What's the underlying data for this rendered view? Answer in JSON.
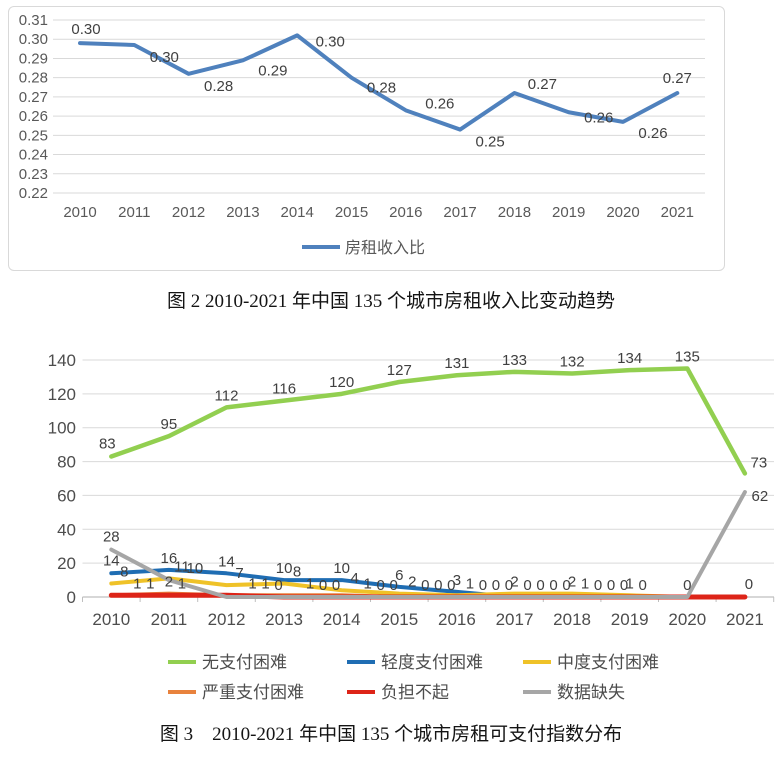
{
  "page": {
    "background": "#ffffff"
  },
  "figure2": {
    "caption": "图 2 2010-2021 年中国 135 个城市房租收入比变动趋势"
  },
  "figure3": {
    "caption": "图 3　2010-2021 年中国 135 个城市房租可支付指数分布"
  },
  "chart_data": [
    {
      "id": "rent-income-ratio-trend",
      "type": "line",
      "categories": [
        "2010",
        "2011",
        "2012",
        "2013",
        "2014",
        "2015",
        "2016",
        "2017",
        "2018",
        "2019",
        "2020",
        "2021"
      ],
      "series": [
        {
          "key": "rent-income-ratio",
          "name": "房租收入比",
          "color": "#4f81bd",
          "values": [
            0.298,
            0.297,
            0.282,
            0.289,
            0.302,
            0.28,
            0.263,
            0.253,
            0.272,
            0.262,
            0.257,
            0.272
          ],
          "data_labels": [
            "0.30",
            "0.30",
            "0.28",
            "0.29",
            "0.30",
            "0.28",
            "0.26",
            "0.25",
            "0.27",
            "0.26",
            "0.26",
            "0.27"
          ]
        }
      ],
      "ylim": [
        0.22,
        0.31
      ],
      "ytick_step": 0.01,
      "ytick_labels": [
        "0.22",
        "0.23",
        "0.24",
        "0.25",
        "0.26",
        "0.27",
        "0.28",
        "0.29",
        "0.30",
        "0.31"
      ],
      "grid": true,
      "grid_color": "#d9d9d9",
      "legend_position": "bottom"
    },
    {
      "id": "affordability-index-distribution",
      "type": "line",
      "categories": [
        "2010",
        "2011",
        "2012",
        "2013",
        "2014",
        "2015",
        "2016",
        "2017",
        "2018",
        "2019",
        "2020",
        "2021"
      ],
      "series": [
        {
          "key": "no-payment-difficulty",
          "name": "无支付困难",
          "color": "#92cf50",
          "values": [
            83,
            95,
            112,
            116,
            120,
            127,
            131,
            133,
            132,
            134,
            135,
            73
          ]
        },
        {
          "key": "mild-payment-difficulty",
          "name": "轻度支付困难",
          "color": "#1f6db3",
          "values": [
            14,
            16,
            14,
            10,
            10,
            6,
            3,
            0,
            1,
            0,
            0,
            0
          ]
        },
        {
          "key": "moderate-payment-difficulty",
          "name": "中度支付困难",
          "color": "#efc228",
          "values": [
            8,
            11,
            7,
            8,
            4,
            2,
            1,
            2,
            2,
            1,
            0,
            0
          ]
        },
        {
          "key": "severe-payment-difficulty",
          "name": "严重支付困难",
          "color": "#e8823d",
          "values": [
            1,
            2,
            1,
            1,
            1,
            0,
            0,
            0,
            0,
            0,
            0,
            0
          ]
        },
        {
          "key": "unaffordable",
          "name": "负担不起",
          "color": "#dd2418",
          "values": [
            1,
            1,
            1,
            0,
            0,
            0,
            0,
            0,
            0,
            0,
            0,
            0
          ]
        },
        {
          "key": "missing-data",
          "name": "数据缺失",
          "color": "#a6a6a6",
          "values": [
            28,
            10,
            0,
            0,
            0,
            0,
            0,
            0,
            0,
            0,
            0,
            62
          ]
        }
      ],
      "ylim": [
        0,
        140
      ],
      "ytick_step": 20,
      "ytick_labels": [
        "0",
        "20",
        "40",
        "60",
        "80",
        "100",
        "120",
        "140"
      ],
      "grid": true,
      "grid_color": "#d9d9d9",
      "axis_color": "#bfbfbf",
      "legend_position": "bottom",
      "legend_rows": [
        [
          "无支付困难",
          "轻度支付困难",
          "中度支付困难"
        ],
        [
          "严重支付困难",
          "负担不起",
          "数据缺失"
        ]
      ]
    }
  ]
}
